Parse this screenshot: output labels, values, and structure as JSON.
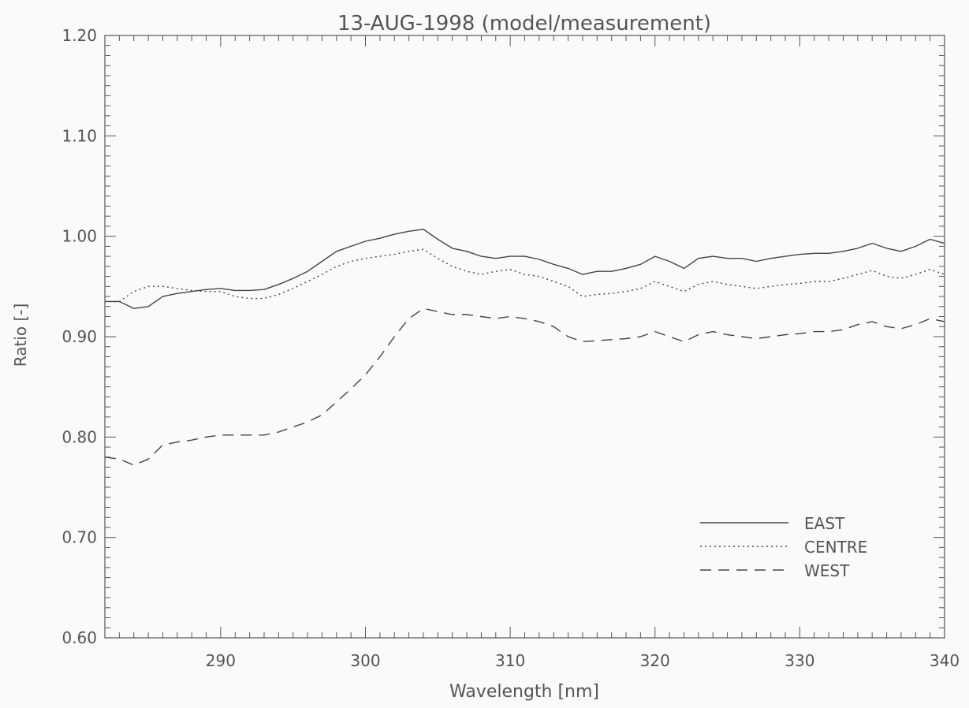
{
  "chart_data": {
    "type": "line",
    "title": "13-AUG-1998 (model/measurement)",
    "xlabel": "Wavelength [nm]",
    "ylabel": "Ratio [-]",
    "xlim": [
      282,
      340
    ],
    "ylim": [
      0.6,
      1.2
    ],
    "x_ticks": [
      290,
      300,
      310,
      320,
      330,
      340
    ],
    "y_ticks": [
      0.6,
      0.7,
      0.8,
      0.9,
      1.0,
      1.1,
      1.2
    ],
    "x_tick_labels": [
      "290",
      "300",
      "310",
      "320",
      "330",
      "340"
    ],
    "y_tick_labels": [
      "0.60",
      "0.70",
      "0.80",
      "0.90",
      "1.00",
      "1.10",
      "1.20"
    ],
    "grid": false,
    "legend_position": "bottom-right",
    "series": [
      {
        "name": "EAST",
        "style": "solid",
        "color": "#444444",
        "x": [
          282,
          283,
          284,
          285,
          286,
          287,
          288,
          289,
          290,
          291,
          292,
          293,
          294,
          295,
          296,
          297,
          298,
          299,
          300,
          301,
          302,
          303,
          304,
          305,
          306,
          307,
          308,
          309,
          310,
          311,
          312,
          313,
          314,
          315,
          316,
          317,
          318,
          319,
          320,
          321,
          322,
          323,
          324,
          325,
          326,
          327,
          328,
          329,
          330,
          331,
          332,
          333,
          334,
          335,
          336,
          337,
          338,
          339,
          340
        ],
        "y": [
          0.935,
          0.935,
          0.928,
          0.93,
          0.94,
          0.943,
          0.945,
          0.947,
          0.948,
          0.946,
          0.946,
          0.947,
          0.952,
          0.958,
          0.965,
          0.975,
          0.985,
          0.99,
          0.995,
          0.998,
          1.002,
          1.005,
          1.007,
          0.997,
          0.988,
          0.985,
          0.98,
          0.978,
          0.98,
          0.98,
          0.977,
          0.972,
          0.968,
          0.962,
          0.965,
          0.965,
          0.968,
          0.972,
          0.98,
          0.975,
          0.968,
          0.978,
          0.98,
          0.978,
          0.978,
          0.975,
          0.978,
          0.98,
          0.982,
          0.983,
          0.983,
          0.985,
          0.988,
          0.993,
          0.988,
          0.985,
          0.99,
          0.997,
          0.993
        ]
      },
      {
        "name": "CENTRE",
        "style": "dotted",
        "color": "#444444",
        "x": [
          282,
          283,
          284,
          285,
          286,
          287,
          288,
          289,
          290,
          291,
          292,
          293,
          294,
          295,
          296,
          297,
          298,
          299,
          300,
          301,
          302,
          303,
          304,
          305,
          306,
          307,
          308,
          309,
          310,
          311,
          312,
          313,
          314,
          315,
          316,
          317,
          318,
          319,
          320,
          321,
          322,
          323,
          324,
          325,
          326,
          327,
          328,
          329,
          330,
          331,
          332,
          333,
          334,
          335,
          336,
          337,
          338,
          339,
          340
        ],
        "y": [
          0.935,
          0.935,
          0.945,
          0.95,
          0.95,
          0.948,
          0.946,
          0.945,
          0.945,
          0.94,
          0.938,
          0.938,
          0.942,
          0.948,
          0.955,
          0.962,
          0.97,
          0.975,
          0.978,
          0.98,
          0.982,
          0.985,
          0.987,
          0.978,
          0.97,
          0.965,
          0.962,
          0.965,
          0.967,
          0.962,
          0.96,
          0.955,
          0.95,
          0.94,
          0.942,
          0.943,
          0.945,
          0.948,
          0.955,
          0.95,
          0.945,
          0.952,
          0.955,
          0.952,
          0.95,
          0.948,
          0.95,
          0.952,
          0.953,
          0.955,
          0.955,
          0.958,
          0.962,
          0.966,
          0.96,
          0.958,
          0.962,
          0.967,
          0.962
        ]
      },
      {
        "name": "WEST",
        "style": "dashed",
        "color": "#444444",
        "x": [
          282,
          283,
          284,
          285,
          286,
          287,
          288,
          289,
          290,
          291,
          292,
          293,
          294,
          295,
          296,
          297,
          298,
          299,
          300,
          301,
          302,
          303,
          304,
          305,
          306,
          307,
          308,
          309,
          310,
          311,
          312,
          313,
          314,
          315,
          316,
          317,
          318,
          319,
          320,
          321,
          322,
          323,
          324,
          325,
          326,
          327,
          328,
          329,
          330,
          331,
          332,
          333,
          334,
          335,
          336,
          337,
          338,
          339,
          340
        ],
        "y": [
          0.78,
          0.778,
          0.772,
          0.778,
          0.792,
          0.795,
          0.797,
          0.8,
          0.802,
          0.802,
          0.802,
          0.802,
          0.805,
          0.81,
          0.815,
          0.822,
          0.835,
          0.848,
          0.862,
          0.88,
          0.9,
          0.918,
          0.928,
          0.925,
          0.922,
          0.922,
          0.92,
          0.918,
          0.92,
          0.918,
          0.915,
          0.91,
          0.9,
          0.895,
          0.896,
          0.897,
          0.898,
          0.9,
          0.905,
          0.9,
          0.895,
          0.902,
          0.905,
          0.902,
          0.9,
          0.898,
          0.9,
          0.902,
          0.903,
          0.905,
          0.905,
          0.907,
          0.912,
          0.915,
          0.91,
          0.908,
          0.912,
          0.918,
          0.915
        ]
      }
    ]
  }
}
